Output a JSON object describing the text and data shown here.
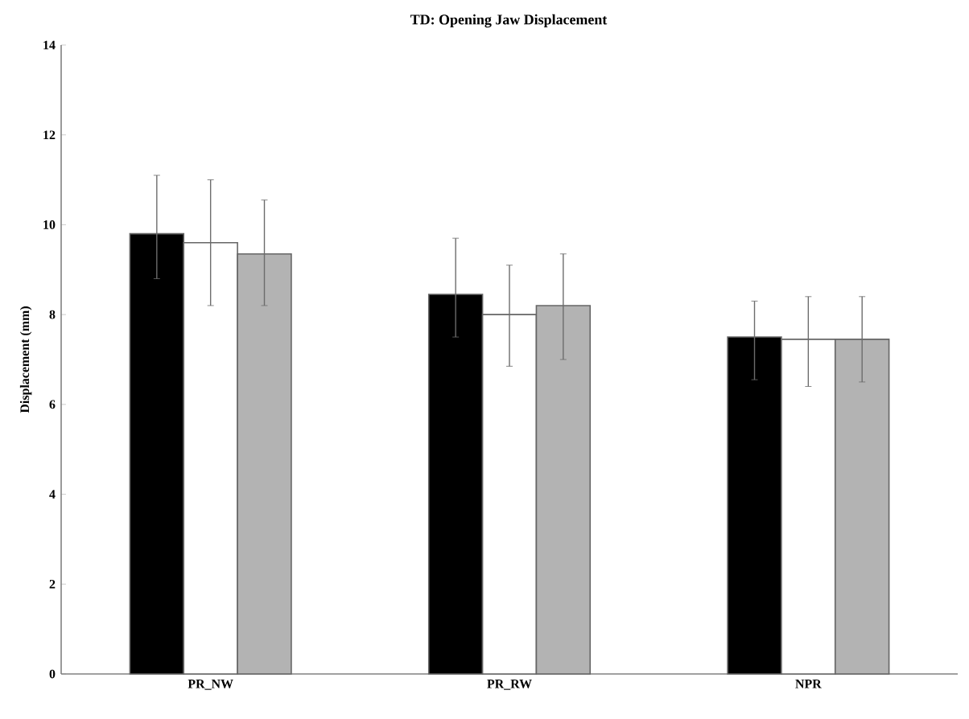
{
  "chart_data": {
    "type": "bar",
    "title": "TD: Opening Jaw Displacement",
    "ylabel": "Displacement (mm)",
    "categories": [
      "PR_NW",
      "PR_RW",
      "NPR"
    ],
    "series": [
      {
        "color": "#000000",
        "values": [
          9.8,
          8.45,
          7.5
        ],
        "errors": [
          [
            8.8,
            11.1
          ],
          [
            7.5,
            9.7
          ],
          [
            6.55,
            8.3
          ]
        ]
      },
      {
        "color": "#ffffff",
        "values": [
          9.6,
          8.0,
          7.45
        ],
        "errors": [
          [
            8.2,
            11.0
          ],
          [
            6.85,
            9.1
          ],
          [
            6.4,
            8.4
          ]
        ]
      },
      {
        "color": "#b3b3b3",
        "values": [
          9.35,
          8.2,
          7.45
        ],
        "errors": [
          [
            8.2,
            10.55
          ],
          [
            7.0,
            9.35
          ],
          [
            6.5,
            8.4
          ]
        ]
      }
    ],
    "ylim": [
      0,
      14
    ],
    "yticks": [
      0,
      2,
      4,
      6,
      8,
      10,
      12,
      14
    ],
    "grid": false
  }
}
